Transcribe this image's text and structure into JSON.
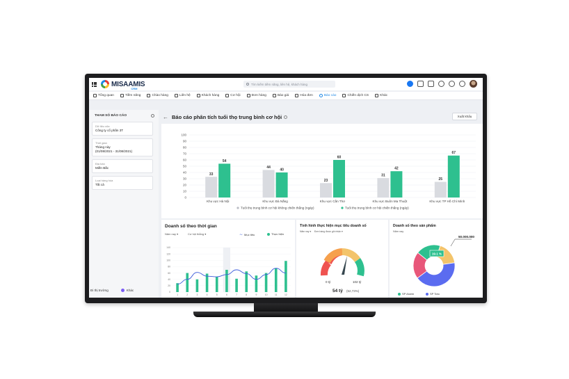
{
  "app": {
    "logo_text": "MISAAMIS",
    "logo_sub": "CRM",
    "search_placeholder": "Tìm kiếm tiềm năng, liên hệ, khách hàng"
  },
  "nav": {
    "items": [
      {
        "label": "Tổng quan",
        "icon": "dashboard-icon",
        "active": false
      },
      {
        "label": "Tiềm năng",
        "icon": "prospect-icon",
        "active": false
      },
      {
        "label": "Chào hàng",
        "icon": "offer-icon",
        "active": false
      },
      {
        "label": "Liên hệ",
        "icon": "contact-icon",
        "active": false
      },
      {
        "label": "Khách hàng",
        "icon": "customer-icon",
        "active": false
      },
      {
        "label": "Cơ hội",
        "icon": "opportunity-icon",
        "active": false
      },
      {
        "label": "Đơn hàng",
        "icon": "order-icon",
        "active": false
      },
      {
        "label": "Báo giá",
        "icon": "quote-icon",
        "active": false
      },
      {
        "label": "Hóa đơn",
        "icon": "invoice-icon",
        "active": false
      },
      {
        "label": "Báo cáo",
        "icon": "report-icon",
        "active": true
      },
      {
        "label": "Chiến dịch CS",
        "icon": "campaign-icon",
        "active": false
      },
      {
        "label": "Khác",
        "icon": "menu-icon",
        "active": false
      }
    ]
  },
  "sidebar": {
    "title": "THAM SỐ BÁO CÁO",
    "filters": [
      {
        "label": "Dữ liệu của",
        "value": "Công ty cổ phần 3T"
      },
      {
        "label": "Thời gian",
        "value": "Tháng này",
        "value2": "(01/08/2021 - 31/08/2021)"
      },
      {
        "label": "Địa bàn",
        "value": "Miền Bắc"
      },
      {
        "label": "Loại hàng hóa",
        "value": "Tất cả"
      }
    ],
    "bottom_left": "Đi thị trường",
    "bottom_right": "Khác"
  },
  "main": {
    "title": "Báo cáo phân tích tuổi thọ trung bình cơ hội",
    "export_label": "Xuất khẩu"
  },
  "panels": {
    "sales_time": {
      "title": "Doanh số theo thời gian",
      "filter1": "Năm nay",
      "filter2": "Cơ hội thắng",
      "legend_target": "Mục tiêu",
      "legend_actual": "Thực hiện"
    },
    "target_progress": {
      "title": "Tình hình thực hiện mục tiêu doanh số",
      "filter1": "Năm nay",
      "filter2": "Đơn hàng được ghi nhận",
      "gauge_min": "0 tỷ",
      "gauge_max": "102 tỷ",
      "gauge_value": "54 tỷ",
      "gauge_percent": "(52,73%)"
    },
    "sales_product": {
      "title": "Doanh số theo sản phẩm",
      "filter1": "Năm nay",
      "callout": "50.000.000",
      "slice_label": "19.1 %",
      "legend1": "SP Alcem",
      "legend2": "SP Toto"
    }
  },
  "chart_data": [
    {
      "type": "bar",
      "title": "",
      "categories": [
        "Khu vực Hà Nội",
        "Khu vực Đà Nẵng",
        "Khu vực Cần Thơ",
        "Khu vực Buôn Ma Thuột",
        "Khu vực TP Hồ Chí Minh"
      ],
      "series": [
        {
          "name": "Tuổi thọ trung bình cơ hội không chiến thắng (ngày)",
          "values": [
            33,
            44,
            23,
            31,
            25
          ],
          "color": "#d9dbe0"
        },
        {
          "name": "Tuổi thọ trung bình cơ hội chiến thắng (ngày)",
          "values": [
            54,
            40,
            60,
            42,
            67
          ],
          "color": "#2ec08f"
        }
      ],
      "yticks": [
        0,
        10,
        20,
        30,
        40,
        50,
        60,
        70,
        80,
        90,
        100
      ],
      "ylim": [
        0,
        100
      ],
      "legend": "bottom",
      "grid": true
    },
    {
      "type": "bar",
      "title": "Doanh số theo thời gian",
      "categories": [
        "1",
        "2",
        "3",
        "4",
        "5",
        "6",
        "7",
        "8",
        "9",
        "10",
        "11",
        "12"
      ],
      "yticks": [
        0,
        20,
        40,
        60,
        80,
        100,
        120,
        140
      ],
      "ylim": [
        0,
        140
      ],
      "series": [
        {
          "name": "Thực hiện",
          "values": [
            28,
            60,
            40,
            58,
            48,
            70,
            42,
            65,
            52,
            60,
            75,
            98
          ],
          "color": "#2ec08f"
        },
        {
          "name": "Mục tiêu",
          "values": [
            25,
            40,
            62,
            50,
            48,
            55,
            70,
            58,
            40,
            55,
            75,
            60
          ],
          "color": "#3b5bdb",
          "type": "line"
        }
      ],
      "highlight_category": "6"
    },
    {
      "type": "pie",
      "title": "Doanh số theo sản phẩm",
      "slices": [
        {
          "name": "SP Alcem",
          "value": 19.1,
          "color": "#2ec08f"
        },
        {
          "name": "",
          "value": 18,
          "color": "#f3c46b"
        },
        {
          "name": "SP Toto",
          "value": 42,
          "color": "#5b6cf0"
        },
        {
          "name": "",
          "value": 20.9,
          "color": "#e8577a"
        }
      ]
    }
  ]
}
